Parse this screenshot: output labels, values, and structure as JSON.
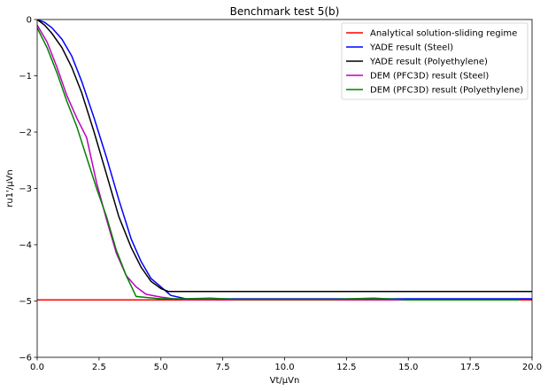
{
  "chart_data": {
    "type": "line",
    "title": "Benchmark test 5(b)",
    "xlabel": "Vt/μVn",
    "ylabel": "ru1'/μVn",
    "xlim": [
      0,
      20
    ],
    "ylim": [
      -6,
      0
    ],
    "x_ticks": [
      "0.0",
      "2.5",
      "5.0",
      "7.5",
      "10.0",
      "12.5",
      "15.0",
      "17.5",
      "20.0"
    ],
    "y_ticks": [
      "0",
      "−1",
      "−2",
      "−3",
      "−4",
      "−5",
      "−6"
    ],
    "grid": false,
    "legend_position": "top-right",
    "series": [
      {
        "name": "Analytical solution-sliding regime",
        "color": "#ff0000",
        "x": [
          0,
          20
        ],
        "y": [
          -4.98,
          -4.98
        ]
      },
      {
        "name": "YADE result (Steel)",
        "color": "#0000ff",
        "x": [
          0,
          0.3,
          0.6,
          1.0,
          1.4,
          1.8,
          2.3,
          2.8,
          3.3,
          3.8,
          4.2,
          4.6,
          5.0,
          5.4,
          6.0,
          7.0,
          10.0,
          15.0,
          20.0
        ],
        "y": [
          0,
          -0.05,
          -0.15,
          -0.35,
          -0.65,
          -1.1,
          -1.75,
          -2.45,
          -3.2,
          -3.9,
          -4.3,
          -4.6,
          -4.75,
          -4.9,
          -4.96,
          -4.96,
          -4.96,
          -4.96,
          -4.96
        ]
      },
      {
        "name": "YADE result (Polyethylene)",
        "color": "#000000",
        "x": [
          0,
          0.3,
          0.6,
          1.0,
          1.4,
          1.8,
          2.3,
          2.8,
          3.3,
          3.8,
          4.2,
          4.6,
          5.0,
          5.3,
          7.0,
          10.0,
          15.0,
          20.0
        ],
        "y": [
          0,
          -0.1,
          -0.25,
          -0.5,
          -0.85,
          -1.3,
          -2.0,
          -2.75,
          -3.5,
          -4.05,
          -4.4,
          -4.65,
          -4.78,
          -4.83,
          -4.83,
          -4.83,
          -4.83,
          -4.83
        ]
      },
      {
        "name": "DEM (PFC3D) result (Steel)",
        "color": "#bf00bf",
        "x": [
          0,
          0.4,
          0.8,
          1.2,
          1.6,
          2.0,
          2.4,
          2.8,
          3.2,
          3.6,
          4.0,
          4.4,
          5.0,
          5.5,
          6.0,
          8.0,
          10.0,
          12.0,
          15.0,
          17.5,
          19.5
        ],
        "y": [
          -0.1,
          -0.4,
          -0.85,
          -1.35,
          -1.75,
          -2.1,
          -2.9,
          -3.55,
          -4.15,
          -4.55,
          -4.75,
          -4.88,
          -4.93,
          -4.96,
          -4.97,
          -4.97,
          -4.97,
          -4.97,
          -4.98,
          -4.98,
          -4.98
        ]
      },
      {
        "name": "DEM (PFC3D) result (Polyethylene)",
        "color": "#008000",
        "x": [
          0,
          0.4,
          0.8,
          1.2,
          1.6,
          2.0,
          2.4,
          2.8,
          3.2,
          3.6,
          4.0,
          4.5,
          5.0,
          6.0,
          7.0,
          8.0,
          10.0,
          12.0,
          13.6,
          15.0,
          17.5,
          19.5
        ],
        "y": [
          -0.15,
          -0.5,
          -0.95,
          -1.45,
          -1.9,
          -2.45,
          -3.0,
          -3.5,
          -4.1,
          -4.55,
          -4.92,
          -4.94,
          -4.96,
          -4.96,
          -4.95,
          -4.97,
          -4.97,
          -4.97,
          -4.95,
          -4.98,
          -4.98,
          -4.98
        ]
      }
    ]
  }
}
